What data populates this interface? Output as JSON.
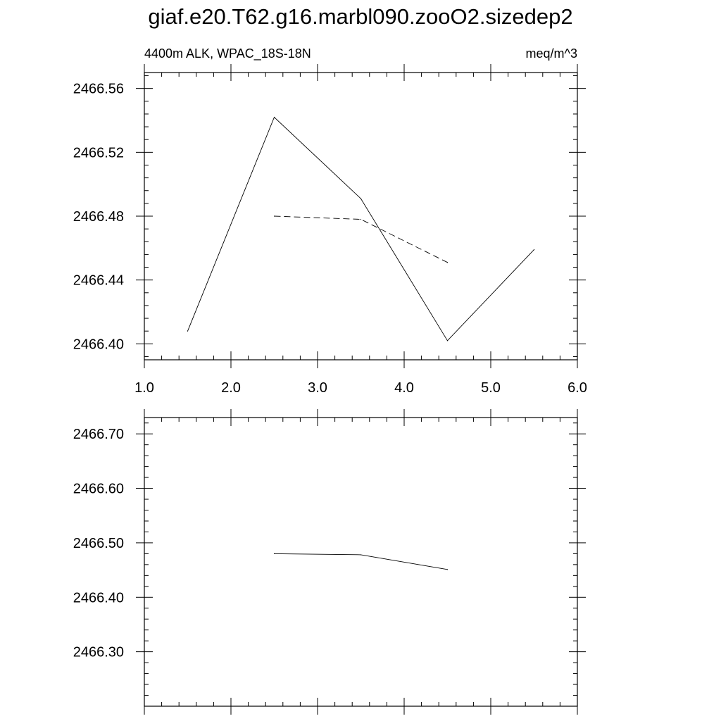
{
  "page": {
    "title": "giaf.e20.T62.g16.marbl090.zooO2.sizedep2"
  },
  "chart_data": [
    {
      "type": "line",
      "title": "giaf.e20.T62.g16.marbl090.zooO2.sizedep2",
      "left_subtitle": "4400m ALK, WPAC_18S-18N",
      "right_subtitle": "meq/m^3",
      "xlim": [
        1.0,
        6.0
      ],
      "ylim": [
        2466.39,
        2466.57
      ],
      "x_ticks": [
        1.0,
        2.0,
        3.0,
        4.0,
        5.0,
        6.0
      ],
      "x_tick_labels": [
        "1.0",
        "2.0",
        "3.0",
        "4.0",
        "5.0",
        "6.0"
      ],
      "y_ticks": [
        2466.4,
        2466.44,
        2466.48,
        2466.52,
        2466.56
      ],
      "y_tick_labels": [
        "2466.40",
        "2466.44",
        "2466.48",
        "2466.52",
        "2466.56"
      ],
      "grid": false,
      "series": [
        {
          "style": "solid",
          "x": [
            1.5,
            2.5,
            3.5,
            4.5,
            5.5
          ],
          "y": [
            2466.408,
            2466.542,
            2466.491,
            2466.402,
            2466.459
          ]
        },
        {
          "style": "dashed",
          "x": [
            2.5,
            3.5,
            4.5
          ],
          "y": [
            2466.48,
            2466.478,
            2466.451
          ]
        }
      ]
    },
    {
      "type": "line",
      "xlim": [
        1.0,
        6.0
      ],
      "ylim": [
        2466.2,
        2466.73
      ],
      "x_ticks": [
        1.0,
        2.0,
        3.0,
        4.0,
        5.0,
        6.0
      ],
      "y_ticks": [
        2466.3,
        2466.4,
        2466.5,
        2466.6,
        2466.7
      ],
      "y_tick_labels": [
        "2466.30",
        "2466.40",
        "2466.50",
        "2466.60",
        "2466.70"
      ],
      "grid": false,
      "series": [
        {
          "style": "solid",
          "x": [
            2.5,
            3.5,
            4.5
          ],
          "y": [
            2466.48,
            2466.478,
            2466.451
          ]
        }
      ]
    }
  ]
}
